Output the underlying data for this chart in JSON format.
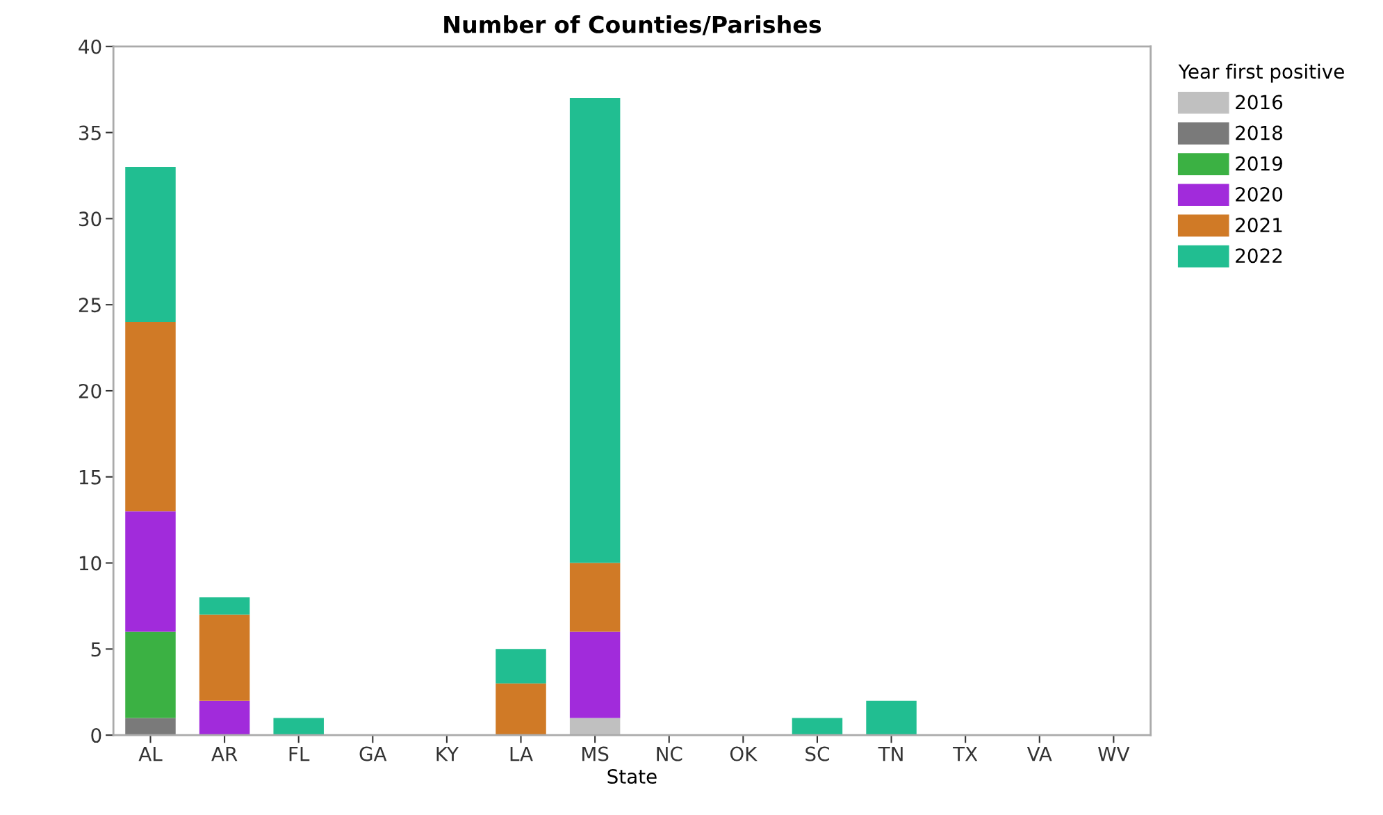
{
  "chart_data": {
    "type": "bar",
    "title": "Number of Counties/Parishes",
    "xlabel": "State",
    "legend_title": "Year first positive",
    "stacked": true,
    "legend": "right",
    "grid": false,
    "categories": [
      "AL",
      "AR",
      "FL",
      "GA",
      "KY",
      "LA",
      "MS",
      "NC",
      "OK",
      "SC",
      "TN",
      "TX",
      "VA",
      "WV"
    ],
    "ylim": [
      0,
      40
    ],
    "yticks": [
      0,
      5,
      10,
      15,
      20,
      25,
      30,
      35,
      40
    ],
    "series": [
      {
        "name": "2016",
        "color": "#c0c0c0",
        "values": [
          0,
          0,
          0,
          0,
          0,
          0,
          1,
          0,
          0,
          0,
          0,
          0,
          0,
          0
        ]
      },
      {
        "name": "2018",
        "color": "#7a7a7a",
        "values": [
          1,
          0,
          0,
          0,
          0,
          0,
          0,
          0,
          0,
          0,
          0,
          0,
          0,
          0
        ]
      },
      {
        "name": "2019",
        "color": "#3bb143",
        "values": [
          5,
          0,
          0,
          0,
          0,
          0,
          0,
          0,
          0,
          0,
          0,
          0,
          0,
          0
        ]
      },
      {
        "name": "2020",
        "color": "#a12bdb",
        "values": [
          7,
          2,
          0,
          0,
          0,
          0,
          5,
          0,
          0,
          0,
          0,
          0,
          0,
          0
        ]
      },
      {
        "name": "2021",
        "color": "#d07a26",
        "values": [
          11,
          5,
          0,
          0,
          0,
          3,
          4,
          0,
          0,
          0,
          0,
          0,
          0,
          0
        ]
      },
      {
        "name": "2022",
        "color": "#21be91",
        "values": [
          9,
          1,
          1,
          0,
          0,
          2,
          27,
          0,
          0,
          1,
          2,
          0,
          0,
          0
        ]
      }
    ]
  }
}
